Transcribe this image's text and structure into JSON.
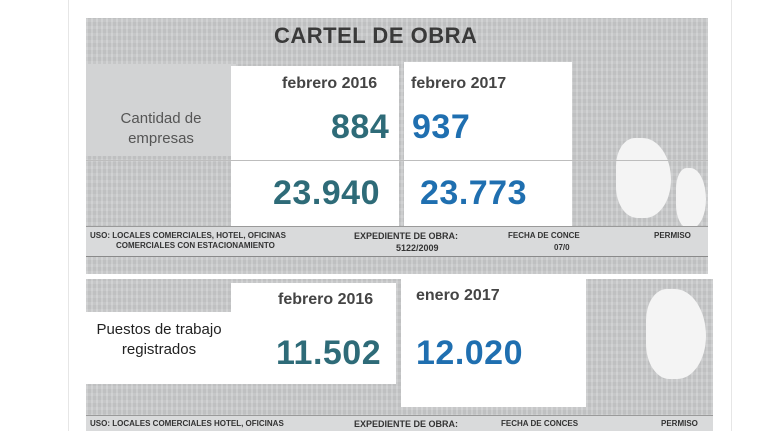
{
  "sign_title": "CARTEL DE OBRA",
  "top_board": {
    "label": "Cantidad de empresas",
    "col1_date": "febrero 2016",
    "col2_date": "febrero 2017",
    "row1_col1_value": "884",
    "row1_col2_value": "937",
    "row2_col1_value": "23.940",
    "row2_col2_value": "23.773",
    "strip_use": "USO: LOCALES COMERCIALES, HOTEL, OFICINAS",
    "strip_use_2": "COMERCIALES CON ESTACIONAMIENTO",
    "strip_expediente": "EXPEDIENTE DE OBRA:",
    "strip_expediente_num": "5122/2009",
    "strip_fecha": "FECHA DE CONCE",
    "strip_fecha_num": "07/0",
    "strip_permiso": "PERMISO"
  },
  "bottom_board": {
    "label": "Puestos de trabajo registrados",
    "col1_date": "febrero 2016",
    "col2_date": "enero 2017",
    "col1_value": "11.502",
    "col2_value": "12.020",
    "strip_use": "USO: LOCALES COMERCIALES HOTEL, OFICINAS",
    "strip_expediente": "EXPEDIENTE DE OBRA:",
    "strip_fecha": "FECHA DE CONCES",
    "strip_permiso": "PERMISO"
  },
  "colors": {
    "teal": "#2e6b78",
    "blue": "#1f6fb0"
  }
}
